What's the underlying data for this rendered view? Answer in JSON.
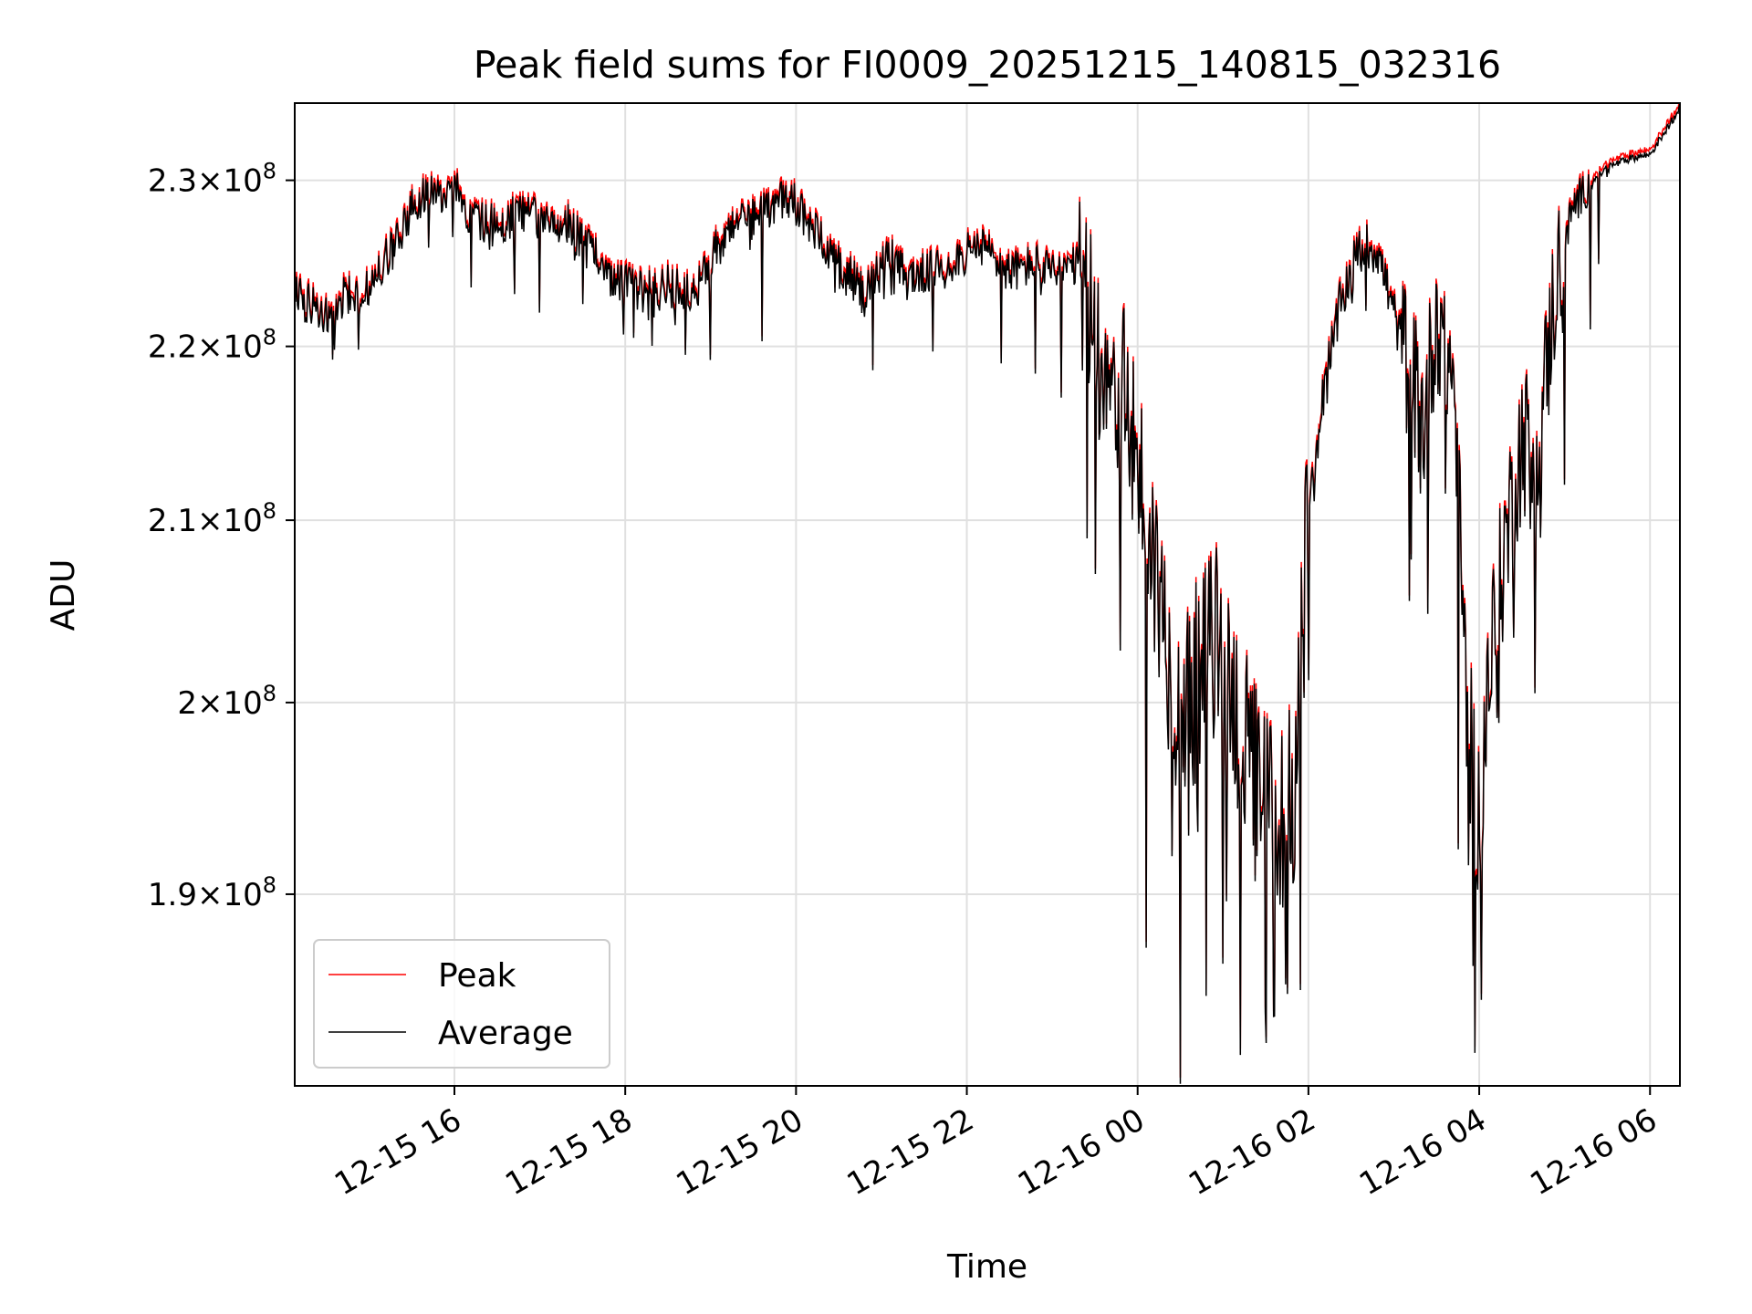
{
  "chart_data": {
    "type": "line",
    "title": "Peak field sums for FI0009_20251215_140815_032316",
    "xlabel": "Time",
    "ylabel": "ADU",
    "y_scale": "log",
    "xlim_hours": [
      14.13,
      30.35
    ],
    "ylim": [
      180500000,
      234800000
    ],
    "x_ticks": [
      {
        "hour": 16,
        "label": "12-15 16"
      },
      {
        "hour": 18,
        "label": "12-15 18"
      },
      {
        "hour": 20,
        "label": "12-15 20"
      },
      {
        "hour": 22,
        "label": "12-15 22"
      },
      {
        "hour": 24,
        "label": "12-16 00"
      },
      {
        "hour": 26,
        "label": "12-16 02"
      },
      {
        "hour": 28,
        "label": "12-16 04"
      },
      {
        "hour": 30,
        "label": "12-16 06"
      }
    ],
    "y_ticks": [
      {
        "value": 190000000,
        "mantissa": "1.9",
        "base": "10",
        "exp": "8"
      },
      {
        "value": 200000000,
        "mantissa": "2",
        "base": "10",
        "exp": "8"
      },
      {
        "value": 210000000,
        "mantissa": "2.1",
        "base": "10",
        "exp": "8"
      },
      {
        "value": 220000000,
        "mantissa": "2.2",
        "base": "10",
        "exp": "8"
      },
      {
        "value": 230000000,
        "mantissa": "2.3",
        "base": "10",
        "exp": "8"
      }
    ],
    "grid": true,
    "legend_position": "lower-left",
    "series": [
      {
        "name": "Peak",
        "color": "#ff0000",
        "offset": 300000
      },
      {
        "name": "Average",
        "color": "#000000",
        "offset": 0
      }
    ],
    "anchors": [
      [
        14.13,
        223.0
      ],
      [
        14.35,
        222.3
      ],
      [
        14.55,
        221.5
      ],
      [
        14.7,
        223.2
      ],
      [
        14.9,
        222.6
      ],
      [
        15.1,
        224.6
      ],
      [
        15.3,
        226.0
      ],
      [
        15.5,
        228.3
      ],
      [
        15.7,
        229.2
      ],
      [
        15.85,
        228.8
      ],
      [
        16.0,
        229.7
      ],
      [
        16.2,
        227.6
      ],
      [
        16.5,
        227.2
      ],
      [
        16.8,
        228.2
      ],
      [
        17.1,
        227.1
      ],
      [
        17.3,
        227.5
      ],
      [
        17.6,
        225.6
      ],
      [
        17.9,
        224.1
      ],
      [
        18.2,
        223.3
      ],
      [
        18.5,
        223.6
      ],
      [
        18.8,
        222.9
      ],
      [
        19.0,
        225.2
      ],
      [
        19.3,
        227.8
      ],
      [
        19.6,
        227.9
      ],
      [
        19.8,
        228.9
      ],
      [
        20.0,
        228.5
      ],
      [
        20.3,
        226.2
      ],
      [
        20.5,
        225.0
      ],
      [
        20.8,
        223.2
      ],
      [
        21.1,
        225.4
      ],
      [
        21.3,
        224.0
      ],
      [
        21.6,
        224.5
      ],
      [
        21.9,
        225.3
      ],
      [
        22.2,
        225.9
      ],
      [
        22.5,
        224.4
      ],
      [
        22.8,
        224.9
      ],
      [
        23.0,
        224.3
      ],
      [
        23.3,
        224.7
      ],
      [
        23.5,
        220.5
      ],
      [
        23.7,
        218.3
      ],
      [
        23.9,
        216.2
      ],
      [
        24.1,
        210.0
      ],
      [
        24.3,
        204.5
      ],
      [
        24.5,
        199.3
      ],
      [
        24.7,
        201.2
      ],
      [
        24.9,
        203.5
      ],
      [
        25.1,
        200.6
      ],
      [
        25.3,
        196.7
      ],
      [
        25.5,
        194.3
      ],
      [
        25.7,
        193.9
      ],
      [
        25.85,
        196.3
      ],
      [
        26.0,
        210.6
      ],
      [
        26.2,
        218.0
      ],
      [
        26.4,
        223.0
      ],
      [
        26.6,
        225.8
      ],
      [
        26.8,
        225.9
      ],
      [
        27.0,
        221.9
      ],
      [
        27.2,
        218.5
      ],
      [
        27.35,
        215.5
      ],
      [
        27.5,
        222.0
      ],
      [
        27.7,
        218.0
      ],
      [
        27.85,
        199.7
      ],
      [
        28.0,
        193.5
      ],
      [
        28.1,
        200.9
      ],
      [
        28.3,
        208.5
      ],
      [
        28.5,
        214.6
      ],
      [
        28.7,
        214.2
      ],
      [
        28.9,
        224.0
      ],
      [
        29.1,
        228.4
      ],
      [
        29.3,
        229.8
      ],
      [
        29.5,
        230.8
      ],
      [
        29.8,
        231.4
      ],
      [
        30.0,
        231.6
      ],
      [
        30.2,
        233.2
      ],
      [
        30.35,
        234.6
      ]
    ],
    "spikes": [
      [
        14.6,
        219.8
      ],
      [
        16.2,
        223.5
      ],
      [
        16.7,
        223.1
      ],
      [
        17.0,
        222.0
      ],
      [
        17.5,
        222.5
      ],
      [
        18.1,
        220.5
      ],
      [
        18.7,
        219.5
      ],
      [
        19.0,
        219.2
      ],
      [
        19.6,
        220.3
      ],
      [
        20.9,
        218.6
      ],
      [
        21.6,
        219.7
      ],
      [
        22.4,
        219.0
      ],
      [
        22.8,
        218.4
      ],
      [
        23.1,
        217.0
      ],
      [
        23.5,
        207.0
      ],
      [
        23.8,
        202.8
      ],
      [
        24.1,
        187.3
      ],
      [
        24.5,
        180.6
      ],
      [
        24.6,
        193.0
      ],
      [
        24.8,
        184.9
      ],
      [
        25.0,
        186.5
      ],
      [
        25.2,
        182.0
      ],
      [
        25.5,
        184.1
      ],
      [
        25.6,
        183.9
      ],
      [
        25.75,
        185.0
      ],
      [
        26.0,
        201.2
      ],
      [
        27.2,
        207.8
      ],
      [
        27.4,
        204.8
      ],
      [
        27.6,
        211.5
      ],
      [
        27.75,
        192.3
      ],
      [
        27.95,
        182.1
      ],
      [
        28.2,
        202.5
      ],
      [
        28.4,
        203.5
      ],
      [
        28.6,
        209.5
      ],
      [
        28.65,
        200.5
      ],
      [
        29.0,
        212.0
      ],
      [
        29.3,
        221.0
      ],
      [
        29.4,
        224.9
      ]
    ],
    "noise_seed": 1729
  }
}
